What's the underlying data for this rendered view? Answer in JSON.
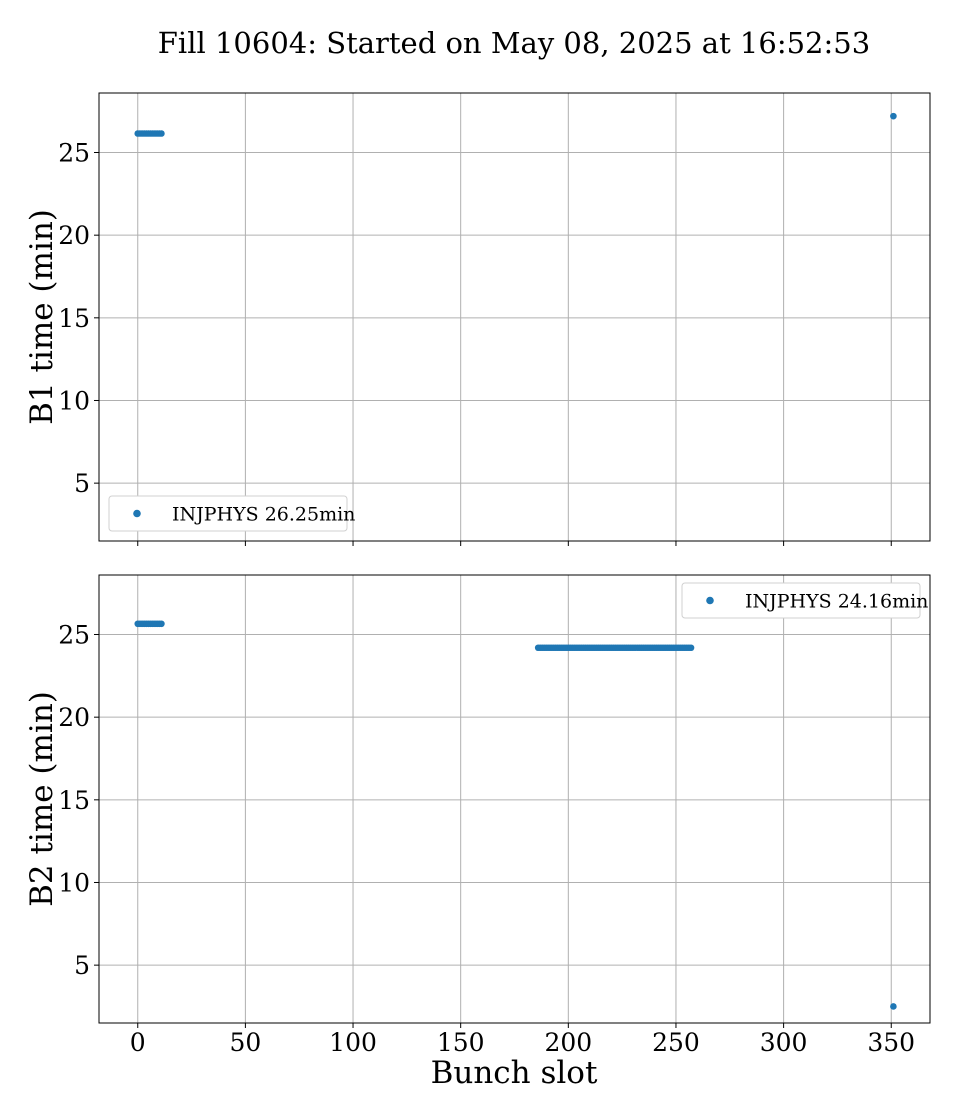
{
  "title": "Fill 10604: Started on May 08, 2025 at 16:52:53",
  "xlabel": "Bunch slot",
  "colors": {
    "series": "#1f77b4",
    "grid": "#b0b0b0"
  },
  "chart_data": [
    {
      "type": "scatter",
      "ylabel": "B1 time (min)",
      "xlim": [
        -18,
        368
      ],
      "ylim": [
        1.5,
        28.6
      ],
      "x_ticks": [
        0,
        50,
        100,
        150,
        200,
        250,
        300,
        350
      ],
      "y_ticks": [
        5,
        10,
        15,
        20,
        25
      ],
      "grid": true,
      "show_x_tick_labels": false,
      "legend_position": "lower-left",
      "series": [
        {
          "name": "INJPHYS 26.25min",
          "points": [
            {
              "x": 0,
              "y": 26.15
            },
            {
              "x": 1,
              "y": 26.15
            },
            {
              "x": 2,
              "y": 26.15
            },
            {
              "x": 3,
              "y": 26.15
            },
            {
              "x": 4,
              "y": 26.15
            },
            {
              "x": 5,
              "y": 26.15
            },
            {
              "x": 6,
              "y": 26.15
            },
            {
              "x": 7,
              "y": 26.15
            },
            {
              "x": 8,
              "y": 26.15
            },
            {
              "x": 9,
              "y": 26.15
            },
            {
              "x": 10,
              "y": 26.15
            },
            {
              "x": 11,
              "y": 26.15
            },
            {
              "x": 351,
              "y": 27.2
            }
          ]
        }
      ]
    },
    {
      "type": "scatter",
      "ylabel": "B2 time (min)",
      "xlim": [
        -18,
        368
      ],
      "ylim": [
        1.5,
        28.6
      ],
      "x_ticks": [
        0,
        50,
        100,
        150,
        200,
        250,
        300,
        350
      ],
      "y_ticks": [
        5,
        10,
        15,
        20,
        25
      ],
      "grid": true,
      "show_x_tick_labels": true,
      "legend_position": "upper-right",
      "series": [
        {
          "name": "INJPHYS 24.16min",
          "segments": [
            {
              "x_start": 0,
              "x_end": 11,
              "y": 25.65
            },
            {
              "x_start": 186,
              "x_end": 257,
              "y": 24.2
            }
          ],
          "points": [
            {
              "x": 351,
              "y": 2.5
            }
          ]
        }
      ]
    }
  ]
}
